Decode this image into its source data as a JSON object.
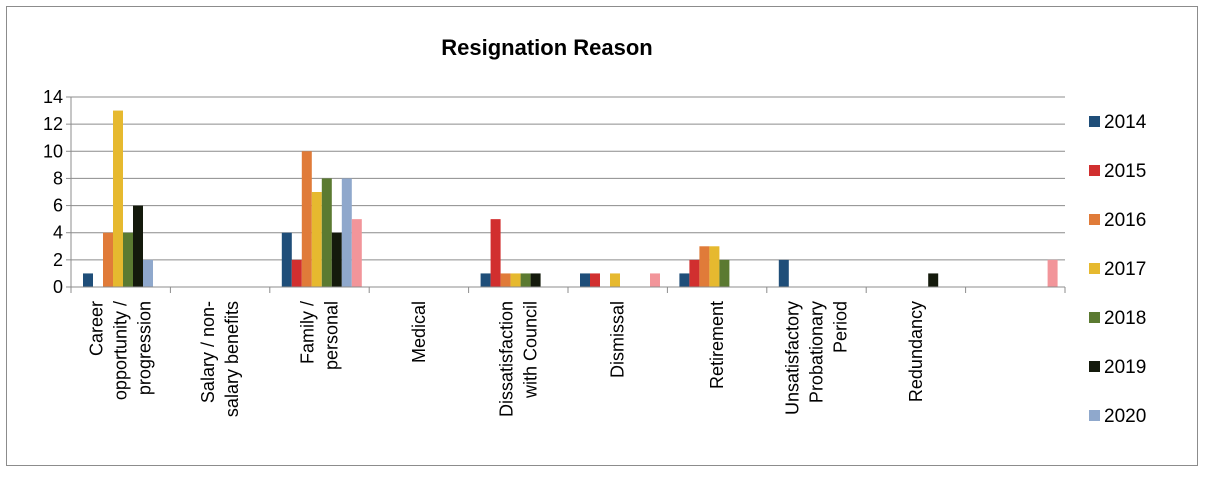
{
  "chart_data": {
    "type": "bar",
    "title": "Resignation Reason",
    "xlabel": "",
    "ylabel": "",
    "ylim": [
      0,
      14
    ],
    "yticks": [
      0,
      2,
      4,
      6,
      8,
      10,
      12,
      14
    ],
    "grid": true,
    "legend_position": "right",
    "categories": [
      [
        "Career",
        "opportunity /",
        "progression"
      ],
      [
        "Salary / non-",
        "salary benefits"
      ],
      [
        "Family /",
        "personal"
      ],
      [
        "Medical"
      ],
      [
        "Dissatisfaction",
        "with Council"
      ],
      [
        "Dismissal"
      ],
      [
        "Retirement"
      ],
      [
        "Unsatisfactory",
        "Probationary",
        "Period"
      ],
      [
        "Redundancy"
      ],
      []
    ],
    "series": [
      {
        "name": "2014",
        "color": "#1f4e79",
        "values": [
          1,
          0,
          4,
          0,
          1,
          1,
          1,
          2,
          0,
          0
        ]
      },
      {
        "name": "2015",
        "color": "#d12f2f",
        "values": [
          0,
          0,
          2,
          0,
          5,
          1,
          2,
          0,
          0,
          0
        ]
      },
      {
        "name": "2016",
        "color": "#e07b39",
        "values": [
          4,
          0,
          10,
          0,
          1,
          0,
          3,
          0,
          0,
          0
        ]
      },
      {
        "name": "2017",
        "color": "#e6b92f",
        "values": [
          13,
          0,
          7,
          0,
          1,
          1,
          3,
          0,
          0,
          0
        ]
      },
      {
        "name": "2018",
        "color": "#5b7a31",
        "values": [
          4,
          0,
          8,
          0,
          1,
          0,
          2,
          0,
          0,
          0
        ]
      },
      {
        "name": "2019",
        "color": "#141a0c",
        "values": [
          6,
          0,
          4,
          0,
          1,
          0,
          0,
          0,
          1,
          0
        ]
      },
      {
        "name": "2020",
        "color": "#8fa8cc",
        "values": [
          2,
          0,
          8,
          0,
          0,
          0,
          0,
          0,
          0,
          0
        ]
      },
      {
        "color": "#f2959a",
        "values": [
          0,
          0,
          5,
          0,
          0,
          1,
          0,
          0,
          0,
          2
        ]
      }
    ]
  }
}
